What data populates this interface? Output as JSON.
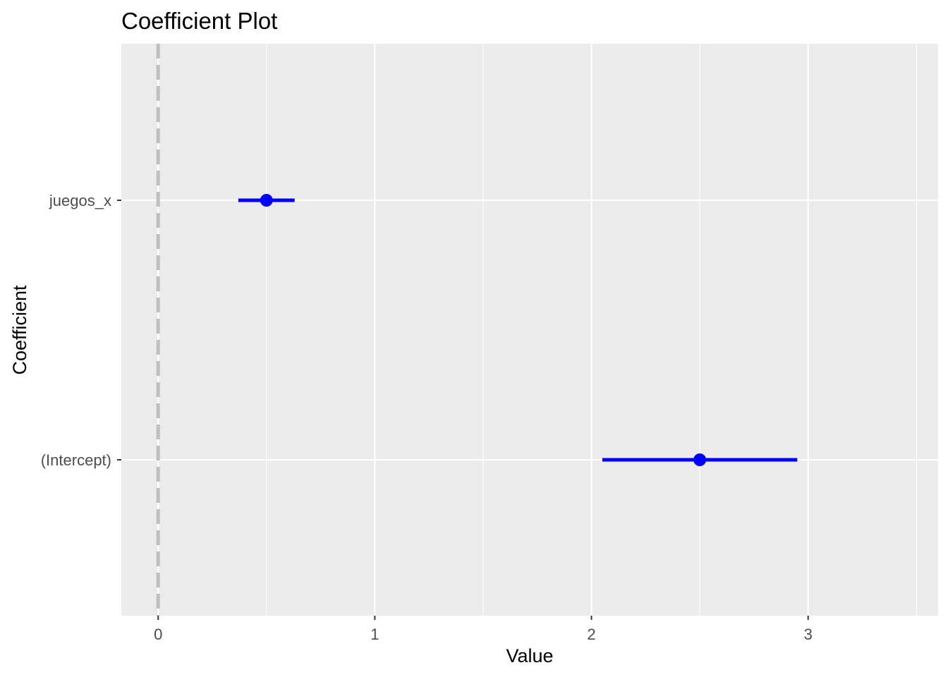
{
  "chart_data": {
    "type": "scatter",
    "title": "Coefficient Plot",
    "xlabel": "Value",
    "ylabel": "Coefficient",
    "xlim": [
      -0.17,
      3.6
    ],
    "x_ticks": [
      "0",
      "1",
      "2",
      "3"
    ],
    "x_tick_values": [
      0,
      1,
      2,
      3
    ],
    "categories": [
      "juegos_x",
      "(Intercept)"
    ],
    "series": [
      {
        "values": [
          0.5,
          2.5
        ],
        "lower": [
          0.37,
          2.05
        ],
        "upper": [
          0.63,
          2.95
        ]
      }
    ],
    "reference_line": {
      "x": 0,
      "style": "dashed"
    },
    "grid": true,
    "colors": {
      "panel_background": "#ebebeb",
      "grid": "#ffffff",
      "point": "#0000ff",
      "reference_line": "#bfbfbf"
    }
  }
}
